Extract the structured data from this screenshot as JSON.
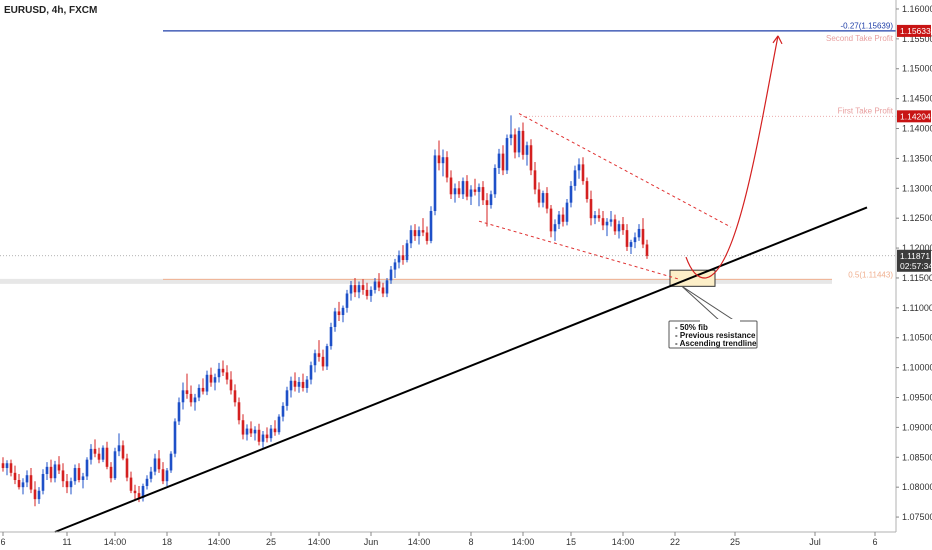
{
  "chart_data": {
    "type": "candlestick",
    "title": "EURUSD, 4h, FXCM",
    "y_axis": {
      "range": [
        1.0725,
        1.1615
      ],
      "tick_labels": [
        "1.16000",
        "1.15500",
        "1.15000",
        "1.14500",
        "1.14000",
        "1.13500",
        "1.13000",
        "1.12500",
        "1.12000",
        "1.11500",
        "1.11000",
        "1.10500",
        "1.10000",
        "1.09500",
        "1.09000",
        "1.08500",
        "1.08000",
        "1.07500"
      ],
      "ticks": [
        1.16,
        1.155,
        1.15,
        1.145,
        1.14,
        1.135,
        1.13,
        1.125,
        1.12,
        1.115,
        1.11,
        1.105,
        1.1,
        1.095,
        1.09,
        1.085,
        1.08,
        1.075
      ]
    },
    "x_axis": {
      "tick_labels": [
        "6",
        "11",
        "14:00",
        "18",
        "14:00",
        "25",
        "14:00",
        "Jun",
        "14:00",
        "8",
        "14:00",
        "15",
        "14:00",
        "22",
        "25",
        "Jul",
        "6"
      ],
      "tick_bars": [
        0,
        16,
        28,
        41,
        54,
        67,
        79,
        92,
        104,
        117,
        130,
        142,
        155,
        168,
        183,
        203,
        218
      ]
    },
    "price_levels": [
      {
        "name": "second_take_profit",
        "label": "Second Take Profit",
        "fib_label": "-0.27(1.15639)",
        "tag": "1.15633",
        "value": 1.15633,
        "color": "#1f3fa8"
      },
      {
        "name": "first_take_profit",
        "label": "First Take Profit",
        "tag": "1.14204",
        "value": 1.14204,
        "color": "#e8a0a0"
      },
      {
        "name": "current_price",
        "tag": "1.11871",
        "countdown": "02:57:34",
        "value": 1.11871,
        "color": "#3a3a3a"
      },
      {
        "name": "fib_50",
        "fib_label": "0.5(1.11443)",
        "value": 1.11443,
        "color": "#f0b090"
      }
    ],
    "trendlines": [
      {
        "name": "ascending_trendline",
        "from": {
          "bar": 13,
          "price": 1.0725
        },
        "to": {
          "bar": 216,
          "price": 1.1268
        },
        "color": "#000000"
      },
      {
        "name": "wedge_upper",
        "from": {
          "bar": 129,
          "price": 1.1425
        },
        "to": {
          "bar": 182,
          "price": 1.1235
        },
        "color": "#e03030"
      },
      {
        "name": "wedge_lower",
        "from": {
          "bar": 119,
          "price": 1.1245
        },
        "to": {
          "bar": 169,
          "price": 1.1148
        },
        "color": "#e03030"
      }
    ],
    "annotations": {
      "note_lines": [
        "- 50% fib",
        "- Previous resistance",
        "- Ascending trendline"
      ],
      "colors": {
        "up": "#1e50c8",
        "down": "#d42020",
        "projection": "#d42020",
        "zone_fill": "#fdefc8",
        "zone_border": "#333333"
      }
    },
    "candles": [
      [
        1.084,
        1.085,
        1.0826,
        1.0832
      ],
      [
        1.0832,
        1.0845,
        1.082,
        1.084
      ],
      [
        1.084,
        1.0846,
        1.0818,
        1.0824
      ],
      [
        1.0824,
        1.0836,
        1.0805,
        1.0812
      ],
      [
        1.0812,
        1.0822,
        1.0796,
        1.08
      ],
      [
        1.08,
        1.0815,
        1.0788,
        1.0808
      ],
      [
        1.0808,
        1.0828,
        1.08,
        1.082
      ],
      [
        1.082,
        1.0832,
        1.079,
        1.0796
      ],
      [
        1.0796,
        1.081,
        1.0768,
        1.078
      ],
      [
        1.078,
        1.08,
        1.0772,
        1.0794
      ],
      [
        1.0794,
        1.083,
        1.0788,
        1.0822
      ],
      [
        1.0822,
        1.0842,
        1.0812,
        1.0834
      ],
      [
        1.0834,
        1.0846,
        1.0808,
        1.0815
      ],
      [
        1.0815,
        1.0844,
        1.0808,
        1.0838
      ],
      [
        1.0838,
        1.0852,
        1.0822,
        1.0828
      ],
      [
        1.0828,
        1.084,
        1.08,
        1.081
      ],
      [
        1.081,
        1.0822,
        1.079,
        1.08
      ],
      [
        1.08,
        1.0816,
        1.0788,
        1.081
      ],
      [
        1.081,
        1.0838,
        1.0804,
        1.0832
      ],
      [
        1.0832,
        1.084,
        1.0808,
        1.0812
      ],
      [
        1.0812,
        1.0824,
        1.0798,
        1.0818
      ],
      [
        1.0818,
        1.085,
        1.0812,
        1.0846
      ],
      [
        1.0846,
        1.0872,
        1.0838,
        1.0864
      ],
      [
        1.0864,
        1.088,
        1.085,
        1.0856
      ],
      [
        1.0856,
        1.0866,
        1.084,
        1.0846
      ],
      [
        1.0846,
        1.087,
        1.0842,
        1.0866
      ],
      [
        1.0866,
        1.0876,
        1.083,
        1.0834
      ],
      [
        1.0834,
        1.0842,
        1.0808,
        1.0815
      ],
      [
        1.0815,
        1.0866,
        1.0812,
        1.086
      ],
      [
        1.086,
        1.089,
        1.0852,
        1.087
      ],
      [
        1.087,
        1.0878,
        1.0845,
        1.0848
      ],
      [
        1.0848,
        1.0856,
        1.081,
        1.0816
      ],
      [
        1.0816,
        1.0826,
        1.079,
        1.0794
      ],
      [
        1.0794,
        1.0804,
        1.0778,
        1.079
      ],
      [
        1.079,
        1.0802,
        1.0775,
        1.0782
      ],
      [
        1.0782,
        1.0806,
        1.0776,
        1.0802
      ],
      [
        1.0802,
        1.082,
        1.0796,
        1.0814
      ],
      [
        1.0814,
        1.0834,
        1.0808,
        1.0826
      ],
      [
        1.0826,
        1.0856,
        1.082,
        1.0848
      ],
      [
        1.0848,
        1.0862,
        1.0824,
        1.083
      ],
      [
        1.083,
        1.0842,
        1.0805,
        1.081
      ],
      [
        1.081,
        1.0832,
        1.0802,
        1.0828
      ],
      [
        1.0828,
        1.086,
        1.0824,
        1.0856
      ],
      [
        1.0856,
        1.0915,
        1.085,
        1.091
      ],
      [
        1.091,
        1.095,
        1.0904,
        1.0942
      ],
      [
        1.0942,
        1.0975,
        1.093,
        1.0962
      ],
      [
        1.0962,
        1.099,
        1.0948,
        1.0956
      ],
      [
        1.0956,
        1.097,
        1.0935,
        1.0942
      ],
      [
        1.0942,
        1.0956,
        1.0928,
        1.095
      ],
      [
        1.095,
        1.0972,
        1.0944,
        1.0966
      ],
      [
        1.0966,
        1.0982,
        1.0955,
        1.096
      ],
      [
        1.096,
        1.0995,
        1.0954,
        1.0988
      ],
      [
        1.0988,
        1.1,
        1.0968,
        1.0975
      ],
      [
        1.0975,
        1.099,
        1.0962,
        1.0984
      ],
      [
        1.0984,
        1.1008,
        1.0975,
        1.0998
      ],
      [
        1.0998,
        1.1012,
        1.0986,
        1.0992
      ],
      [
        1.0992,
        1.1004,
        1.0972,
        1.098
      ],
      [
        1.098,
        1.0994,
        1.0955,
        1.0962
      ],
      [
        1.0962,
        1.0972,
        1.0935,
        1.0942
      ],
      [
        1.0942,
        1.095,
        1.0905,
        1.0912
      ],
      [
        1.0912,
        1.0922,
        1.088,
        1.0888
      ],
      [
        1.0888,
        1.0905,
        1.0878,
        1.0898
      ],
      [
        1.0898,
        1.091,
        1.0884,
        1.089
      ],
      [
        1.089,
        1.0902,
        1.0878,
        1.0896
      ],
      [
        1.0896,
        1.0906,
        1.087,
        1.0876
      ],
      [
        1.0876,
        1.0894,
        1.0866,
        1.0888
      ],
      [
        1.0888,
        1.09,
        1.0875,
        1.0882
      ],
      [
        1.0882,
        1.0904,
        1.0876,
        1.0898
      ],
      [
        1.0898,
        1.0912,
        1.0886,
        1.0892
      ],
      [
        1.0892,
        1.0922,
        1.0888,
        1.0918
      ],
      [
        1.0918,
        1.0942,
        1.091,
        1.0936
      ],
      [
        1.0936,
        1.0968,
        1.0928,
        1.0962
      ],
      [
        1.0962,
        1.0985,
        1.095,
        1.0978
      ],
      [
        1.0978,
        1.0992,
        1.096,
        1.0968
      ],
      [
        1.0968,
        1.0984,
        1.0958,
        1.0976
      ],
      [
        1.0976,
        1.099,
        1.096,
        1.0966
      ],
      [
        1.0966,
        1.0986,
        1.0958,
        1.098
      ],
      [
        1.098,
        1.101,
        1.0972,
        1.1004
      ],
      [
        1.1004,
        1.103,
        1.0992,
        1.1024
      ],
      [
        1.1024,
        1.1046,
        1.101,
        1.1018
      ],
      [
        1.1018,
        1.103,
        1.0995,
        1.1002
      ],
      [
        1.1002,
        1.104,
        1.0996,
        1.1036
      ],
      [
        1.1036,
        1.1075,
        1.103,
        1.1068
      ],
      [
        1.1068,
        1.11,
        1.106,
        1.1094
      ],
      [
        1.1094,
        1.111,
        1.1078,
        1.1088
      ],
      [
        1.1088,
        1.1104,
        1.1076,
        1.11
      ],
      [
        1.11,
        1.113,
        1.1092,
        1.1124
      ],
      [
        1.1124,
        1.1145,
        1.1112,
        1.1138
      ],
      [
        1.1138,
        1.115,
        1.1118,
        1.1126
      ],
      [
        1.1126,
        1.1144,
        1.1116,
        1.1138
      ],
      [
        1.1138,
        1.1148,
        1.1122,
        1.113
      ],
      [
        1.113,
        1.1142,
        1.1114,
        1.112
      ],
      [
        1.112,
        1.1136,
        1.111,
        1.113
      ],
      [
        1.113,
        1.115,
        1.1124,
        1.1144
      ],
      [
        1.1144,
        1.1158,
        1.1128,
        1.1134
      ],
      [
        1.1134,
        1.1142,
        1.1118,
        1.1124
      ],
      [
        1.1124,
        1.115,
        1.1118,
        1.1146
      ],
      [
        1.1146,
        1.117,
        1.114,
        1.1164
      ],
      [
        1.1164,
        1.1182,
        1.115,
        1.1176
      ],
      [
        1.1176,
        1.1196,
        1.1166,
        1.1188
      ],
      [
        1.1188,
        1.1205,
        1.1172,
        1.118
      ],
      [
        1.118,
        1.1214,
        1.1176,
        1.1208
      ],
      [
        1.1208,
        1.1238,
        1.12,
        1.123
      ],
      [
        1.123,
        1.124,
        1.1212,
        1.122
      ],
      [
        1.122,
        1.1236,
        1.1206,
        1.123
      ],
      [
        1.123,
        1.125,
        1.122,
        1.1226
      ],
      [
        1.1226,
        1.1236,
        1.1206,
        1.1212
      ],
      [
        1.1212,
        1.127,
        1.1208,
        1.1262
      ],
      [
        1.1262,
        1.1365,
        1.1255,
        1.1355
      ],
      [
        1.1355,
        1.138,
        1.133,
        1.1342
      ],
      [
        1.1342,
        1.1365,
        1.132,
        1.1352
      ],
      [
        1.1352,
        1.1362,
        1.131,
        1.1318
      ],
      [
        1.1318,
        1.133,
        1.1282,
        1.129
      ],
      [
        1.129,
        1.1308,
        1.1276,
        1.13
      ],
      [
        1.13,
        1.1312,
        1.1284,
        1.129
      ],
      [
        1.129,
        1.1318,
        1.1282,
        1.1312
      ],
      [
        1.1312,
        1.1322,
        1.128,
        1.1286
      ],
      [
        1.1286,
        1.1305,
        1.1272,
        1.1298
      ],
      [
        1.1298,
        1.1316,
        1.1288,
        1.1294
      ],
      [
        1.1294,
        1.1308,
        1.127,
        1.1302
      ],
      [
        1.1302,
        1.1312,
        1.1272,
        1.128
      ],
      [
        1.128,
        1.1292,
        1.1236,
        1.1272
      ],
      [
        1.1272,
        1.1296,
        1.1266,
        1.129
      ],
      [
        1.129,
        1.134,
        1.1284,
        1.1334
      ],
      [
        1.1334,
        1.1366,
        1.1324,
        1.1358
      ],
      [
        1.1358,
        1.1372,
        1.1322,
        1.133
      ],
      [
        1.133,
        1.139,
        1.1324,
        1.1384
      ],
      [
        1.1384,
        1.1422,
        1.1372,
        1.139
      ],
      [
        1.139,
        1.14,
        1.135,
        1.136
      ],
      [
        1.136,
        1.1402,
        1.1352,
        1.1396
      ],
      [
        1.1396,
        1.141,
        1.1348,
        1.1356
      ],
      [
        1.1356,
        1.1378,
        1.1338,
        1.1372
      ],
      [
        1.1372,
        1.1382,
        1.1322,
        1.133
      ],
      [
        1.133,
        1.1344,
        1.129,
        1.1298
      ],
      [
        1.1298,
        1.131,
        1.1268,
        1.1276
      ],
      [
        1.1276,
        1.1296,
        1.1268,
        1.1292
      ],
      [
        1.1292,
        1.1302,
        1.1258,
        1.1266
      ],
      [
        1.1266,
        1.1272,
        1.1218,
        1.1228
      ],
      [
        1.1228,
        1.1248,
        1.1212,
        1.124
      ],
      [
        1.124,
        1.1262,
        1.1232,
        1.1256
      ],
      [
        1.1256,
        1.1268,
        1.1236,
        1.1244
      ],
      [
        1.1244,
        1.1282,
        1.1238,
        1.1276
      ],
      [
        1.1276,
        1.1312,
        1.1268,
        1.1304
      ],
      [
        1.1304,
        1.1338,
        1.1296,
        1.133
      ],
      [
        1.133,
        1.135,
        1.1316,
        1.134
      ],
      [
        1.134,
        1.1352,
        1.1306,
        1.1312
      ],
      [
        1.1312,
        1.1318,
        1.1276,
        1.1282
      ],
      [
        1.1282,
        1.1296,
        1.1238,
        1.125
      ],
      [
        1.125,
        1.1262,
        1.124,
        1.1255
      ],
      [
        1.1255,
        1.1266,
        1.1244,
        1.125
      ],
      [
        1.125,
        1.1262,
        1.123,
        1.1238
      ],
      [
        1.1238,
        1.125,
        1.122,
        1.1244
      ],
      [
        1.1244,
        1.1262,
        1.1236,
        1.1248
      ],
      [
        1.1248,
        1.1256,
        1.1222,
        1.1228
      ],
      [
        1.1228,
        1.1246,
        1.1216,
        1.124
      ],
      [
        1.124,
        1.1252,
        1.1222,
        1.123
      ],
      [
        1.123,
        1.124,
        1.1195,
        1.1202
      ],
      [
        1.1202,
        1.1214,
        1.119,
        1.121
      ],
      [
        1.121,
        1.1226,
        1.12,
        1.1218
      ],
      [
        1.1218,
        1.124,
        1.1212,
        1.1232
      ],
      [
        1.1232,
        1.125,
        1.12,
        1.1206
      ],
      [
        1.1206,
        1.1214,
        1.1182,
        1.1187
      ]
    ]
  }
}
